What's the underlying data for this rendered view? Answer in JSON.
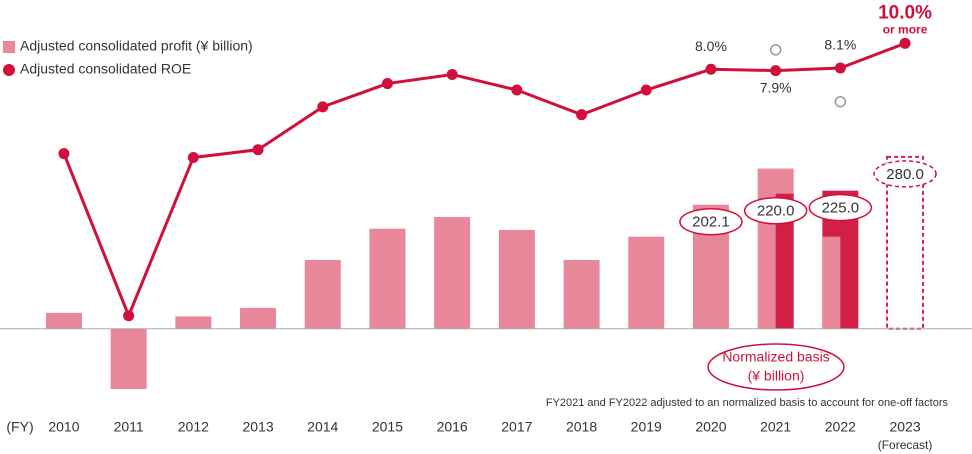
{
  "chart_data": {
    "type": "bar",
    "categories": [
      "2010",
      "2011",
      "2012",
      "2013",
      "2014",
      "2015",
      "2016",
      "2017",
      "2018",
      "2019",
      "2020",
      "2021",
      "2022",
      "2023"
    ],
    "x_prefix": "(FY)",
    "category_note": "(Forecast)",
    "ylim": [
      -116,
      503
    ],
    "y2lim": [
      -17.5,
      11.8
    ],
    "series": [
      {
        "name": "Adjusted consolidated profit (¥ billion)",
        "type": "bar",
        "color": "#e8879a",
        "values": [
          26,
          -98,
          20,
          34,
          112,
          163,
          182,
          161,
          112,
          150,
          202.1,
          261,
          150,
          null
        ],
        "value_labels": [
          null,
          null,
          null,
          null,
          null,
          null,
          null,
          null,
          null,
          null,
          "202.1",
          null,
          null,
          null
        ]
      },
      {
        "type": "bar",
        "color": "#d31f45",
        "values": [
          null,
          null,
          null,
          null,
          null,
          null,
          null,
          null,
          null,
          null,
          null,
          220,
          225,
          null
        ],
        "value_labels": [
          null,
          null,
          null,
          null,
          null,
          null,
          null,
          null,
          null,
          null,
          null,
          "220.0",
          "225.0",
          null
        ]
      },
      {
        "type": "bar",
        "color": "#d31f45",
        "dashed": true,
        "values": [
          null,
          null,
          null,
          null,
          null,
          null,
          null,
          null,
          null,
          null,
          null,
          null,
          null,
          280
        ],
        "value_labels": [
          null,
          null,
          null,
          null,
          null,
          null,
          null,
          null,
          null,
          null,
          null,
          null,
          null,
          "280.0"
        ]
      },
      {
        "name": "Adjusted consolidated ROE",
        "type": "line",
        "axis": "y2",
        "color": "#d0103a",
        "values": [
          1.5,
          -11,
          1.2,
          1.8,
          5.1,
          6.9,
          7.6,
          6.4,
          4.5,
          6.4,
          8.0,
          7.9,
          8.1,
          10.0
        ],
        "value_labels": [
          null,
          null,
          null,
          null,
          null,
          null,
          null,
          null,
          null,
          null,
          "8.0%",
          "7.9%",
          "8.1%",
          "10.0%"
        ]
      },
      {
        "type": "scatter",
        "axis": "y2",
        "color": "#999999",
        "values": [
          null,
          null,
          null,
          null,
          null,
          null,
          null,
          null,
          null,
          null,
          null,
          9.5,
          5.5,
          null
        ]
      }
    ],
    "roe_note": "or more",
    "normalized_label": [
      "Normalized basis",
      "(¥ billion)"
    ],
    "annotation": "FY2021 and FY2022 adjusted to an normalized basis to account for one-off factors"
  }
}
